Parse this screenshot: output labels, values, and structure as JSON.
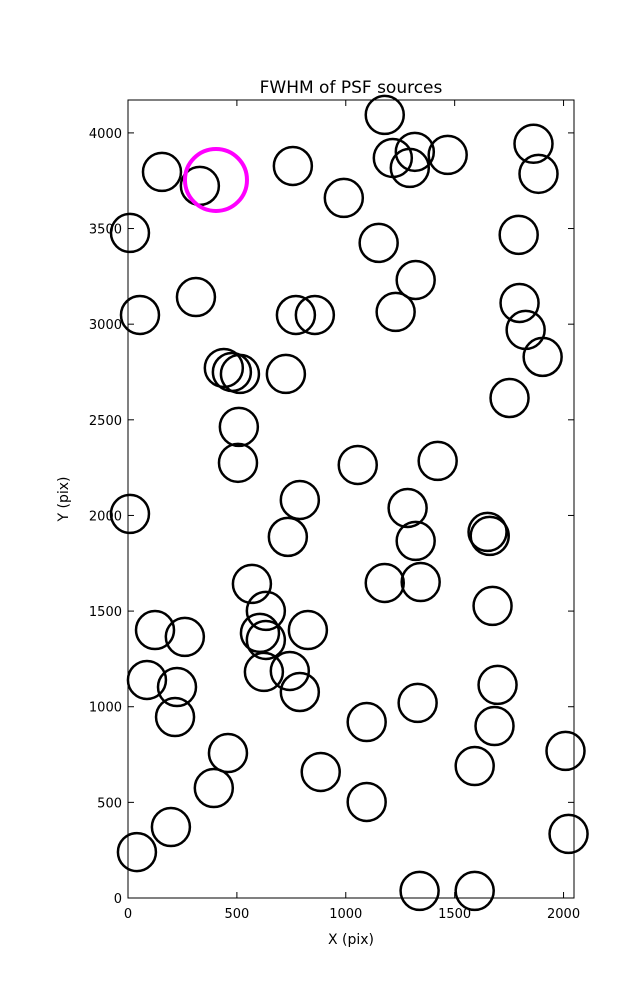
{
  "chart_data": {
    "type": "scatter",
    "title": "FWHM of PSF sources",
    "x_label": "X (pix)",
    "y_label": "Y (pix)",
    "xlim": [
      0,
      2048
    ],
    "ylim": [
      0,
      4172
    ],
    "xticks": [
      0,
      500,
      1000,
      1500,
      2000
    ],
    "yticks": [
      0,
      500,
      1000,
      1500,
      2000,
      2500,
      3000,
      3500,
      4000
    ],
    "series": [
      {
        "color": "#000000",
        "x": [
          1179,
          1317,
          1294,
          1216,
          1468,
          1862,
          1885,
          156,
          330,
          757,
          991,
          9,
          1794,
          1151,
          1321,
          55,
          312,
          771,
          858,
          1229,
          1798,
          1826,
          1904,
          1752,
          440,
          477,
          514,
          725,
          509,
          505,
          1055,
          1422,
          9,
          789,
          1284,
          1651,
          1661,
          734,
          1321,
          569,
          1179,
          1344,
          633,
          1674,
          124,
          261,
          606,
          633,
          826,
          87,
          225,
          624,
          743,
          789,
          1697,
          216,
          1096,
          1330,
          1683,
          459,
          2009,
          885,
          1592,
          394,
          1096,
          2023,
          197,
          41,
          1339,
          1592
        ],
        "values": [
          4094,
          3901,
          3817,
          3869,
          3885,
          3943,
          3786,
          3796,
          3723,
          3827,
          3660,
          3477,
          3467,
          3425,
          3231,
          3048,
          3142,
          3048,
          3048,
          3064,
          3111,
          2970,
          2829,
          2614,
          2771,
          2750,
          2740,
          2740,
          2463,
          2275,
          2264,
          2285,
          2008,
          2081,
          2039,
          1914,
          1893,
          1888,
          1867,
          1642,
          1647,
          1652,
          1501,
          1527,
          1401,
          1365,
          1386,
          1349,
          1401,
          1140,
          1103,
          1182,
          1187,
          1077,
          1114,
          946,
          920,
          1020,
          899,
          758,
          769,
          659,
          690,
          575,
          502,
          335,
          371,
          240,
          37,
          37
        ]
      },
      {
        "color": "#ff00ff",
        "x": [
          404
        ],
        "values": [
          3754
        ]
      }
    ]
  }
}
